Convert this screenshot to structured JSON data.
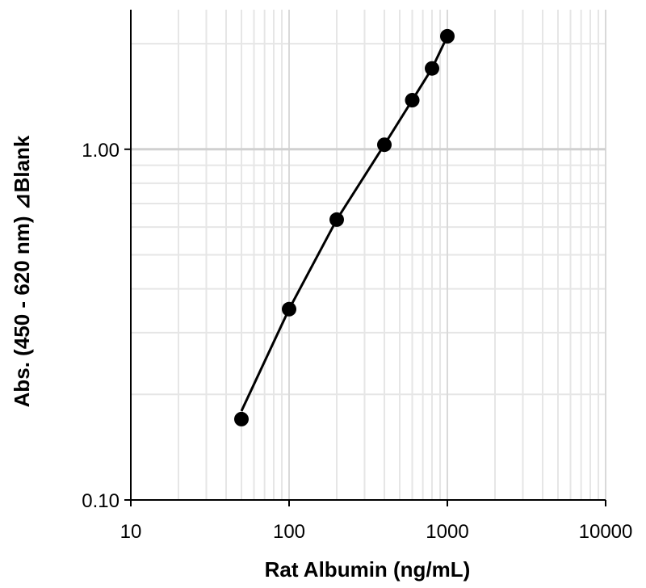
{
  "chart_data": {
    "type": "scatter",
    "title": "",
    "xlabel": "Rat Albumin (ng/mL)",
    "ylabel": "Abs. (450 - 620 nm) ⊿Blank",
    "x_scale": "log",
    "y_scale": "log",
    "xlim": [
      10,
      10000
    ],
    "ylim": [
      0.1,
      2.5
    ],
    "x_ticks": [
      "10",
      "100",
      "1000",
      "10000"
    ],
    "y_ticks": [
      "0.10",
      "1.00"
    ],
    "grid": true,
    "legend": "none",
    "series": [
      {
        "x": [
          50,
          100,
          200,
          400,
          600,
          800,
          1000
        ],
        "y": [
          0.17,
          0.35,
          0.63,
          1.03,
          1.38,
          1.7,
          2.1
        ],
        "color": "#000000"
      }
    ]
  }
}
